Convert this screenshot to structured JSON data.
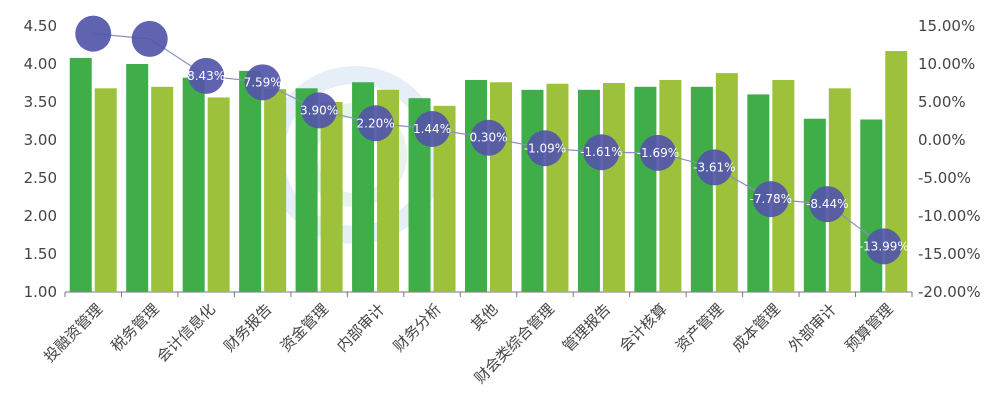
{
  "chart_data": {
    "type": "bar+line",
    "categories": [
      "投融资管理",
      "税务管理",
      "会计信息化",
      "财务报告",
      "资金管理",
      "内部审计",
      "财务分析",
      "其他",
      "财会类综合管理",
      "管理报告",
      "会计核算",
      "资产管理",
      "成本管理",
      "外部审计",
      "预算管理"
    ],
    "series": [
      {
        "axis": "left",
        "type": "bar",
        "color": "#3fae49",
        "values": [
          4.08,
          4.0,
          3.82,
          3.91,
          3.68,
          3.76,
          3.55,
          3.79,
          3.66,
          3.66,
          3.7,
          3.7,
          3.6,
          3.28,
          3.27
        ]
      },
      {
        "axis": "left",
        "type": "bar",
        "color": "#9ec13b",
        "values": [
          3.68,
          3.7,
          3.56,
          3.67,
          3.5,
          3.66,
          3.45,
          3.76,
          3.74,
          3.75,
          3.79,
          3.88,
          3.79,
          3.68,
          4.17
        ]
      },
      {
        "axis": "right",
        "type": "line",
        "color": "#5256a8",
        "values": [
          14.0,
          13.3,
          8.43,
          7.59,
          3.9,
          2.2,
          1.44,
          0.3,
          -1.09,
          -1.61,
          -1.69,
          -3.61,
          -7.78,
          -8.44,
          -13.99
        ],
        "labels": [
          "",
          "",
          "8.43%",
          "7.59%",
          "3.90%",
          "2.20%",
          "1.44%",
          "0.30%",
          "-1.09%",
          "-1.61%",
          "-1.69%",
          "-3.61%",
          "-7.78%",
          "-8.44%",
          "-13.99%"
        ]
      }
    ],
    "y_left": {
      "ylim": [
        1.0,
        4.5
      ],
      "ticks": [
        "1.00",
        "1.50",
        "2.00",
        "2.50",
        "3.00",
        "3.50",
        "4.00",
        "4.50"
      ]
    },
    "y_right": {
      "ylim": [
        -20,
        15
      ],
      "ticks": [
        "15.00%",
        "10.00%",
        "5.00%",
        "0.00%",
        "-5.00%",
        "-10.00%",
        "-15.00%",
        "-20.00%"
      ]
    }
  }
}
